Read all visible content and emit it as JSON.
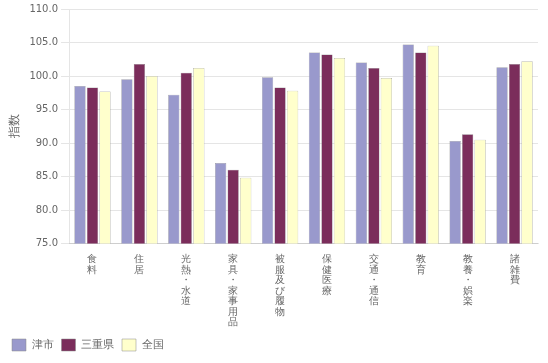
{
  "chart_data": {
    "type": "bar",
    "categories": [
      "食料",
      "住居",
      "光熱・水道",
      "家具・家事用品",
      "被服及び履物",
      "保健医療",
      "交通・通信",
      "教育",
      "教養・娯楽",
      "諸雑費"
    ],
    "series": [
      {
        "name": "津市",
        "color": "#9999CC",
        "values": [
          98.5,
          99.5,
          97.2,
          87.0,
          99.8,
          103.5,
          102.0,
          104.7,
          90.3,
          101.3
        ]
      },
      {
        "name": "三重県",
        "color": "#7B2D5B",
        "values": [
          98.3,
          101.8,
          100.5,
          86.0,
          98.3,
          103.2,
          101.2,
          103.5,
          91.3,
          101.8
        ]
      },
      {
        "name": "全国",
        "color": "#FFFFCC",
        "values": [
          97.7,
          100.0,
          101.2,
          84.8,
          97.8,
          102.7,
          99.7,
          104.5,
          90.5,
          102.2
        ]
      }
    ],
    "ylabel": "指数",
    "ylim": [
      75.0,
      110.0
    ],
    "yticks": [
      {
        "value": 75,
        "label": "75.0"
      },
      {
        "value": 80,
        "label": "80.0"
      },
      {
        "value": 85,
        "label": "85.0"
      },
      {
        "value": 90,
        "label": "90.0"
      },
      {
        "value": 95,
        "label": "95.0"
      },
      {
        "value": 100,
        "label": "100.0"
      },
      {
        "value": 105,
        "label": "105.0"
      },
      {
        "value": 110,
        "label": "110.0"
      }
    ],
    "grid": true,
    "legend": "lower left"
  }
}
